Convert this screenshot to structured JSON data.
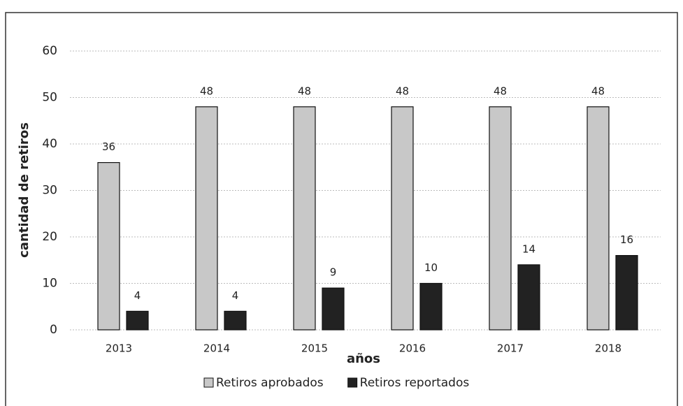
{
  "chart_data": {
    "type": "bar",
    "categories": [
      "2013",
      "2014",
      "2015",
      "2016",
      "2017",
      "2018"
    ],
    "series": [
      {
        "name": "Retiros aprobados",
        "color": "#c8c8c8",
        "values": [
          36,
          48,
          48,
          48,
          48,
          48
        ]
      },
      {
        "name": "Retiros reportados",
        "color": "#222222",
        "values": [
          4,
          4,
          9,
          10,
          14,
          16
        ]
      }
    ],
    "xlabel": "años",
    "ylabel": "cantidad de retiros",
    "ylim": [
      0,
      60
    ],
    "yticks": [
      0,
      10,
      20,
      30,
      40,
      50,
      60
    ],
    "grid": true,
    "legend": "bottom"
  }
}
